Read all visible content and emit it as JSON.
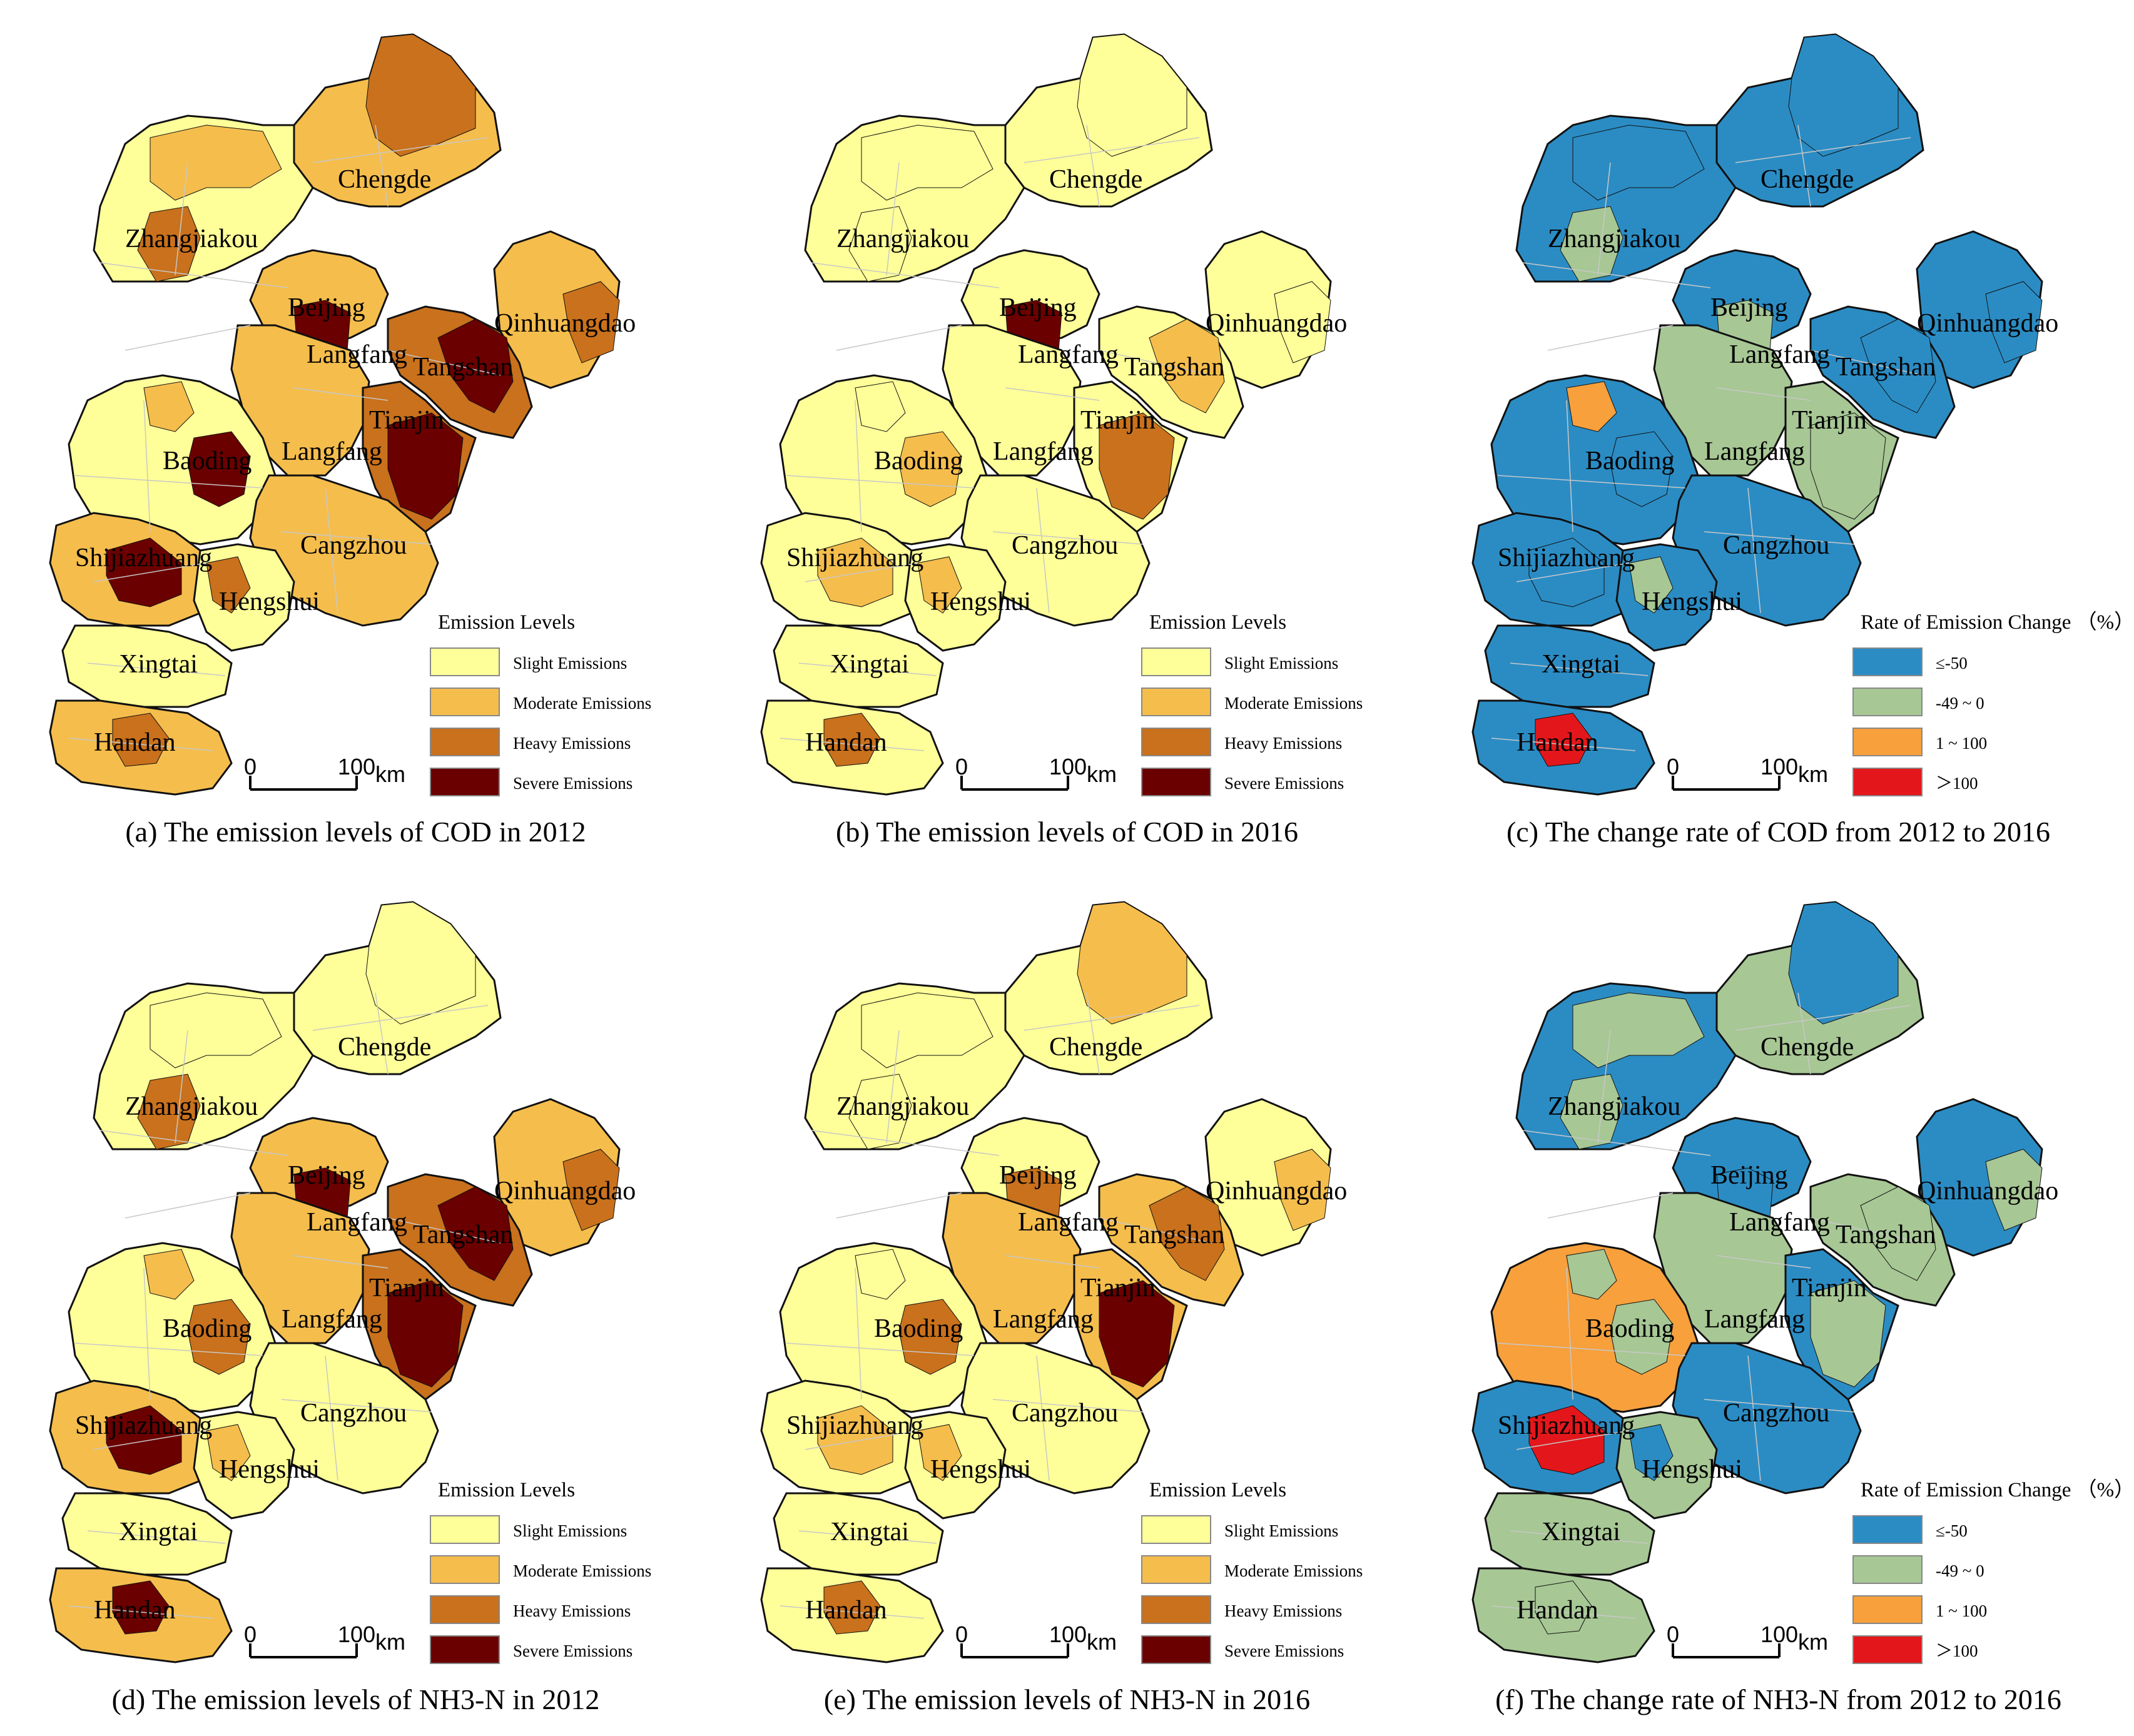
{
  "colors": {
    "levels": [
      "#ffff99",
      "#f5bd4c",
      "#c9711c",
      "#6b0000"
    ],
    "change": [
      "#2b8cc4",
      "#a7c795",
      "#f7a03c",
      "#e3171b"
    ],
    "boundary": "#111111",
    "county": "#c8c8c8"
  },
  "cities": [
    "Chengde",
    "Zhangjiakou",
    "Beijing",
    "Qinhuangdao",
    "Langfang",
    "Tangshan",
    "Tianjin",
    "Baoding",
    "Shijiazhuang",
    "Cangzhou",
    "Hengshui",
    "Xingtai",
    "Handan"
  ],
  "scale": {
    "zero": "0",
    "hundred": "100",
    "unit": "km"
  },
  "legend_levels": {
    "title": "Emission Levels",
    "items": [
      "Slight Emissions",
      "Moderate Emissions",
      "Heavy Emissions",
      "Severe Emissions"
    ]
  },
  "legend_change": {
    "title": "Rate of Emission Change （%）",
    "items": [
      "≤-50",
      "-49 ~ 0",
      "1 ~ 100",
      "＞100"
    ]
  },
  "panels": [
    {
      "id": "a",
      "type": "levels",
      "caption": "(a) The emission levels of COD in 2012",
      "regions": {
        "Chengde": 1,
        "Chengde_N": 2,
        "Zhangjiakou": 0,
        "Zhangjiakou_sub": 1,
        "Zhangjiakou_sub2": 2,
        "Beijing": 1,
        "Beijing_core": 3,
        "Qinhuangdao": 1,
        "Qinhuangdao_sub": 2,
        "Langfang": 1,
        "Tangshan": 2,
        "Tangshan_core": 3,
        "Tianjin": 2,
        "Tianjin_core": 3,
        "Baoding": 0,
        "Baoding_core": 3,
        "Baoding_sub": 1,
        "Shijiazhuang": 1,
        "Shijiazhuang_core": 3,
        "Cangzhou": 1,
        "Hengshui": 0,
        "Hengshui_sub": 2,
        "Xingtai": 0,
        "Handan": 1,
        "Handan_core": 2
      }
    },
    {
      "id": "b",
      "type": "levels",
      "caption": "(b) The emission levels of COD in 2016",
      "regions": {
        "Chengde": 0,
        "Chengde_N": 0,
        "Zhangjiakou": 0,
        "Zhangjiakou_sub": 0,
        "Zhangjiakou_sub2": 0,
        "Beijing": 0,
        "Beijing_core": 3,
        "Qinhuangdao": 0,
        "Qinhuangdao_sub": 0,
        "Langfang": 0,
        "Tangshan": 0,
        "Tangshan_core": 1,
        "Tianjin": 0,
        "Tianjin_core": 2,
        "Baoding": 0,
        "Baoding_core": 1,
        "Baoding_sub": 0,
        "Shijiazhuang": 0,
        "Shijiazhuang_core": 1,
        "Cangzhou": 0,
        "Hengshui": 0,
        "Hengshui_sub": 1,
        "Xingtai": 0,
        "Handan": 0,
        "Handan_core": 2
      }
    },
    {
      "id": "c",
      "type": "change",
      "caption": "(c)  The  change rate of COD  from 2012 to 2016",
      "regions": {
        "Chengde": 0,
        "Chengde_N": 0,
        "Zhangjiakou": 0,
        "Zhangjiakou_sub": 0,
        "Zhangjiakou_sub2": 1,
        "Beijing": 0,
        "Beijing_core": 1,
        "Qinhuangdao": 0,
        "Qinhuangdao_sub": 0,
        "Langfang": 1,
        "Tangshan": 0,
        "Tangshan_core": 0,
        "Tianjin": 1,
        "Tianjin_core": 1,
        "Baoding": 0,
        "Baoding_core": 0,
        "Baoding_sub": 2,
        "Shijiazhuang": 0,
        "Shijiazhuang_core": 0,
        "Cangzhou": 0,
        "Hengshui": 0,
        "Hengshui_sub": 1,
        "Xingtai": 0,
        "Handan": 0,
        "Handan_core": 3
      }
    },
    {
      "id": "d",
      "type": "levels",
      "caption": "(d) The emission levels of NH3-N in 2012",
      "regions": {
        "Chengde": 0,
        "Chengde_N": 0,
        "Zhangjiakou": 0,
        "Zhangjiakou_sub": 0,
        "Zhangjiakou_sub2": 2,
        "Beijing": 1,
        "Beijing_core": 3,
        "Qinhuangdao": 1,
        "Qinhuangdao_sub": 2,
        "Langfang": 1,
        "Tangshan": 2,
        "Tangshan_core": 3,
        "Tianjin": 2,
        "Tianjin_core": 3,
        "Baoding": 0,
        "Baoding_core": 2,
        "Baoding_sub": 1,
        "Shijiazhuang": 1,
        "Shijiazhuang_core": 3,
        "Cangzhou": 0,
        "Hengshui": 0,
        "Hengshui_sub": 1,
        "Xingtai": 0,
        "Handan": 1,
        "Handan_core": 3
      }
    },
    {
      "id": "e",
      "type": "levels",
      "caption": "(e) The emission levels of NH3-N in 2016",
      "regions": {
        "Chengde": 0,
        "Chengde_N": 1,
        "Zhangjiakou": 0,
        "Zhangjiakou_sub": 0,
        "Zhangjiakou_sub2": 0,
        "Beijing": 0,
        "Beijing_core": 2,
        "Qinhuangdao": 0,
        "Qinhuangdao_sub": 1,
        "Langfang": 1,
        "Tangshan": 1,
        "Tangshan_core": 2,
        "Tianjin": 1,
        "Tianjin_core": 3,
        "Baoding": 0,
        "Baoding_core": 2,
        "Baoding_sub": 0,
        "Shijiazhuang": 0,
        "Shijiazhuang_core": 1,
        "Cangzhou": 0,
        "Hengshui": 0,
        "Hengshui_sub": 1,
        "Xingtai": 0,
        "Handan": 0,
        "Handan_core": 2
      }
    },
    {
      "id": "f",
      "type": "change",
      "caption": "(f)  The  change rate of NH3-N  from 2012 to 2016",
      "regions": {
        "Chengde": 1,
        "Chengde_N": 0,
        "Zhangjiakou": 0,
        "Zhangjiakou_sub": 1,
        "Zhangjiakou_sub2": 1,
        "Beijing": 0,
        "Beijing_core": 0,
        "Qinhuangdao": 0,
        "Qinhuangdao_sub": 1,
        "Langfang": 1,
        "Tangshan": 1,
        "Tangshan_core": 1,
        "Tianjin": 0,
        "Tianjin_core": 1,
        "Baoding": 2,
        "Baoding_core": 1,
        "Baoding_sub": 1,
        "Shijiazhuang": 0,
        "Shijiazhuang_core": 3,
        "Cangzhou": 0,
        "Hengshui": 1,
        "Hengshui_sub": 0,
        "Xingtai": 1,
        "Handan": 1,
        "Handan_core": 1
      }
    }
  ]
}
